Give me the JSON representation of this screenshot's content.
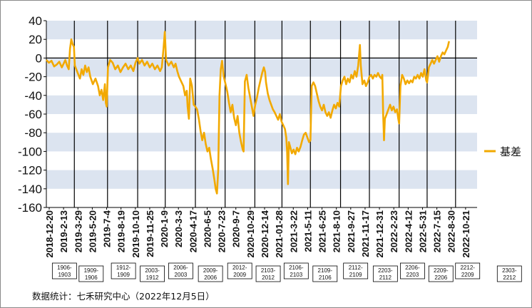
{
  "source_note": "数据统计：七禾研究中心（2022年12月5日）",
  "colors": {
    "line": "#F2A900",
    "band": "#DCE4F0",
    "axis": "#000000",
    "text": "#111111"
  },
  "chart_data": {
    "type": "line",
    "title": "",
    "xlabel": "",
    "ylabel": "",
    "ylim": [
      -160,
      40
    ],
    "yticks": [
      40,
      20,
      0,
      -20,
      -40,
      -60,
      -80,
      -100,
      -120,
      -140,
      -160
    ],
    "legend": {
      "position": "right",
      "label": "基差"
    },
    "xticks": [
      "2018-12-20",
      "2019-2-13",
      "2019-3-29",
      "2019-5-20",
      "2019-7-4",
      "2019-8-19",
      "2019-10-10",
      "2019-11-25",
      "2020-1-9",
      "2020-3-3",
      "2020-4-17",
      "2020-6-5",
      "2020-7-23",
      "2020-9-7",
      "2020-10-29",
      "2020-12-14",
      "2021-01-28",
      "2021-3-22",
      "2021-5-11",
      "2021-6-25",
      "2021-8-10",
      "2021-9-27",
      "2021-11-17",
      "2021-12-31",
      "2022-2-23",
      "2022-4-12",
      "2022-5-31",
      "2022-7-15",
      "2022-8-30",
      "2022-10-21"
    ],
    "contracts": [
      {
        "label": "1906-1903",
        "x": 0.042
      },
      {
        "label": "1909-1906",
        "x": 0.104
      },
      {
        "label": "1912-1909",
        "x": 0.179
      },
      {
        "label": "2003-1912",
        "x": 0.246
      },
      {
        "label": "2006-2003",
        "x": 0.312
      },
      {
        "label": "2009-2006",
        "x": 0.381
      },
      {
        "label": "2012-2009",
        "x": 0.449
      },
      {
        "label": "2103-2012",
        "x": 0.515
      },
      {
        "label": "2106-2103",
        "x": 0.58
      },
      {
        "label": "2109-2106",
        "x": 0.647
      },
      {
        "label": "2112-2109",
        "x": 0.718
      },
      {
        "label": "2203-2112",
        "x": 0.787
      },
      {
        "label": "2206-2203",
        "x": 0.85
      },
      {
        "label": "2209-2206",
        "x": 0.916
      },
      {
        "label": "2212-2209",
        "x": 0.978
      },
      {
        "label": "2303-2212",
        "x": 1.075
      }
    ],
    "roll_lines": [
      0.065,
      0.142,
      0.212,
      0.276,
      0.346,
      0.415,
      0.484,
      0.547,
      0.613,
      0.683,
      0.75,
      0.819,
      0.884,
      0.95
    ],
    "series": [
      {
        "name": "基差",
        "points": [
          [
            0.0,
            -2
          ],
          [
            0.006,
            -5
          ],
          [
            0.012,
            -3
          ],
          [
            0.018,
            -9
          ],
          [
            0.024,
            -7
          ],
          [
            0.03,
            -4
          ],
          [
            0.036,
            -10
          ],
          [
            0.04,
            -6
          ],
          [
            0.044,
            -2
          ],
          [
            0.048,
            -8
          ],
          [
            0.052,
            -12
          ],
          [
            0.055,
            10
          ],
          [
            0.058,
            20
          ],
          [
            0.061,
            15
          ],
          [
            0.064,
            12
          ],
          [
            0.066,
            -8
          ],
          [
            0.072,
            -15
          ],
          [
            0.078,
            -22
          ],
          [
            0.082,
            -12
          ],
          [
            0.086,
            -18
          ],
          [
            0.09,
            -8
          ],
          [
            0.094,
            -15
          ],
          [
            0.098,
            -10
          ],
          [
            0.102,
            -20
          ],
          [
            0.108,
            -28
          ],
          [
            0.114,
            -22
          ],
          [
            0.12,
            -30
          ],
          [
            0.124,
            -40
          ],
          [
            0.128,
            -34
          ],
          [
            0.132,
            -45
          ],
          [
            0.136,
            -28
          ],
          [
            0.138,
            -48
          ],
          [
            0.14,
            -52
          ],
          [
            0.143,
            -10
          ],
          [
            0.148,
            -2
          ],
          [
            0.154,
            -5
          ],
          [
            0.16,
            -12
          ],
          [
            0.166,
            -8
          ],
          [
            0.172,
            -15
          ],
          [
            0.178,
            -10
          ],
          [
            0.184,
            -6
          ],
          [
            0.19,
            -12
          ],
          [
            0.196,
            -8
          ],
          [
            0.202,
            -14
          ],
          [
            0.207,
            -5
          ],
          [
            0.212,
            0
          ],
          [
            0.216,
            -6
          ],
          [
            0.222,
            -2
          ],
          [
            0.228,
            -8
          ],
          [
            0.234,
            -4
          ],
          [
            0.24,
            -10
          ],
          [
            0.246,
            -6
          ],
          [
            0.252,
            -12
          ],
          [
            0.258,
            -8
          ],
          [
            0.264,
            -14
          ],
          [
            0.268,
            -10
          ],
          [
            0.272,
            10
          ],
          [
            0.275,
            28
          ],
          [
            0.278,
            -2
          ],
          [
            0.284,
            -8
          ],
          [
            0.29,
            -4
          ],
          [
            0.296,
            -10
          ],
          [
            0.3,
            -6
          ],
          [
            0.304,
            -14
          ],
          [
            0.308,
            -20
          ],
          [
            0.312,
            -24
          ],
          [
            0.318,
            -30
          ],
          [
            0.322,
            -40
          ],
          [
            0.326,
            -35
          ],
          [
            0.328,
            -52
          ],
          [
            0.331,
            -65
          ],
          [
            0.334,
            -22
          ],
          [
            0.338,
            -30
          ],
          [
            0.342,
            -50
          ],
          [
            0.346,
            -52
          ],
          [
            0.35,
            -55
          ],
          [
            0.354,
            -65
          ],
          [
            0.358,
            -78
          ],
          [
            0.362,
            -88
          ],
          [
            0.366,
            -80
          ],
          [
            0.37,
            -92
          ],
          [
            0.374,
            -100
          ],
          [
            0.378,
            -96
          ],
          [
            0.382,
            -108
          ],
          [
            0.386,
            -118
          ],
          [
            0.39,
            -130
          ],
          [
            0.393,
            -140
          ],
          [
            0.396,
            -145
          ],
          [
            0.399,
            -120
          ],
          [
            0.402,
            -40
          ],
          [
            0.405,
            -12
          ],
          [
            0.408,
            -3
          ],
          [
            0.412,
            -20
          ],
          [
            0.416,
            -28
          ],
          [
            0.42,
            -36
          ],
          [
            0.424,
            -48
          ],
          [
            0.428,
            -58
          ],
          [
            0.432,
            -50
          ],
          [
            0.436,
            -64
          ],
          [
            0.44,
            -72
          ],
          [
            0.444,
            -62
          ],
          [
            0.448,
            -80
          ],
          [
            0.452,
            -90
          ],
          [
            0.456,
            -98
          ],
          [
            0.458,
            -100
          ],
          [
            0.461,
            -25
          ],
          [
            0.465,
            -18
          ],
          [
            0.469,
            -32
          ],
          [
            0.473,
            -42
          ],
          [
            0.477,
            -52
          ],
          [
            0.481,
            -62
          ],
          [
            0.485,
            -50
          ],
          [
            0.489,
            -42
          ],
          [
            0.493,
            -32
          ],
          [
            0.497,
            -24
          ],
          [
            0.501,
            -16
          ],
          [
            0.505,
            -10
          ],
          [
            0.508,
            -15
          ],
          [
            0.51,
            -26
          ],
          [
            0.514,
            -38
          ],
          [
            0.518,
            -45
          ],
          [
            0.522,
            -50
          ],
          [
            0.526,
            -55
          ],
          [
            0.53,
            -58
          ],
          [
            0.534,
            -62
          ],
          [
            0.538,
            -66
          ],
          [
            0.542,
            -60
          ],
          [
            0.546,
            -68
          ],
          [
            0.55,
            -72
          ],
          [
            0.554,
            -76
          ],
          [
            0.557,
            -85
          ],
          [
            0.559,
            -100
          ],
          [
            0.561,
            -135
          ],
          [
            0.563,
            -90
          ],
          [
            0.566,
            -95
          ],
          [
            0.57,
            -102
          ],
          [
            0.574,
            -98
          ],
          [
            0.578,
            -103
          ],
          [
            0.582,
            -96
          ],
          [
            0.586,
            -100
          ],
          [
            0.59,
            -95
          ],
          [
            0.594,
            -88
          ],
          [
            0.598,
            -82
          ],
          [
            0.602,
            -80
          ],
          [
            0.606,
            -85
          ],
          [
            0.61,
            -90
          ],
          [
            0.613,
            -88
          ],
          [
            0.616,
            -30
          ],
          [
            0.62,
            -26
          ],
          [
            0.624,
            -30
          ],
          [
            0.628,
            -38
          ],
          [
            0.632,
            -46
          ],
          [
            0.636,
            -52
          ],
          [
            0.64,
            -56
          ],
          [
            0.644,
            -50
          ],
          [
            0.648,
            -58
          ],
          [
            0.652,
            -62
          ],
          [
            0.656,
            -58
          ],
          [
            0.66,
            -64
          ],
          [
            0.664,
            -56
          ],
          [
            0.668,
            -50
          ],
          [
            0.672,
            -54
          ],
          [
            0.676,
            -48
          ],
          [
            0.68,
            -52
          ],
          [
            0.684,
            -30
          ],
          [
            0.688,
            -24
          ],
          [
            0.692,
            -20
          ],
          [
            0.696,
            -28
          ],
          [
            0.7,
            -22
          ],
          [
            0.704,
            -26
          ],
          [
            0.708,
            -18
          ],
          [
            0.712,
            -22
          ],
          [
            0.716,
            -14
          ],
          [
            0.72,
            -20
          ],
          [
            0.724,
            -8
          ],
          [
            0.728,
            14
          ],
          [
            0.73,
            -8
          ],
          [
            0.734,
            -28
          ],
          [
            0.738,
            -24
          ],
          [
            0.742,
            -30
          ],
          [
            0.746,
            -26
          ],
          [
            0.75,
            -20
          ],
          [
            0.754,
            -18
          ],
          [
            0.758,
            -22
          ],
          [
            0.762,
            -18
          ],
          [
            0.766,
            -20
          ],
          [
            0.77,
            -16
          ],
          [
            0.774,
            -20
          ],
          [
            0.778,
            -22
          ],
          [
            0.78,
            -18
          ],
          [
            0.782,
            -60
          ],
          [
            0.784,
            -88
          ],
          [
            0.786,
            -65
          ],
          [
            0.79,
            -60
          ],
          [
            0.794,
            -55
          ],
          [
            0.798,
            -50
          ],
          [
            0.802,
            -56
          ],
          [
            0.806,
            -52
          ],
          [
            0.81,
            -58
          ],
          [
            0.814,
            -55
          ],
          [
            0.817,
            -65
          ],
          [
            0.819,
            -70
          ],
          [
            0.822,
            -30
          ],
          [
            0.826,
            -18
          ],
          [
            0.83,
            -22
          ],
          [
            0.834,
            -28
          ],
          [
            0.838,
            -24
          ],
          [
            0.842,
            -27
          ],
          [
            0.846,
            -24
          ],
          [
            0.85,
            -26
          ],
          [
            0.854,
            -20
          ],
          [
            0.858,
            -22
          ],
          [
            0.862,
            -18
          ],
          [
            0.866,
            -22
          ],
          [
            0.87,
            -16
          ],
          [
            0.874,
            -20
          ],
          [
            0.878,
            -12
          ],
          [
            0.882,
            -24
          ],
          [
            0.884,
            -26
          ],
          [
            0.888,
            -10
          ],
          [
            0.892,
            -6
          ],
          [
            0.896,
            -2
          ],
          [
            0.9,
            -6
          ],
          [
            0.904,
            -2
          ],
          [
            0.908,
            2
          ],
          [
            0.912,
            -4
          ],
          [
            0.916,
            2
          ],
          [
            0.92,
            6
          ],
          [
            0.924,
            4
          ],
          [
            0.928,
            8
          ],
          [
            0.932,
            12
          ],
          [
            0.935,
            18
          ]
        ]
      }
    ]
  }
}
